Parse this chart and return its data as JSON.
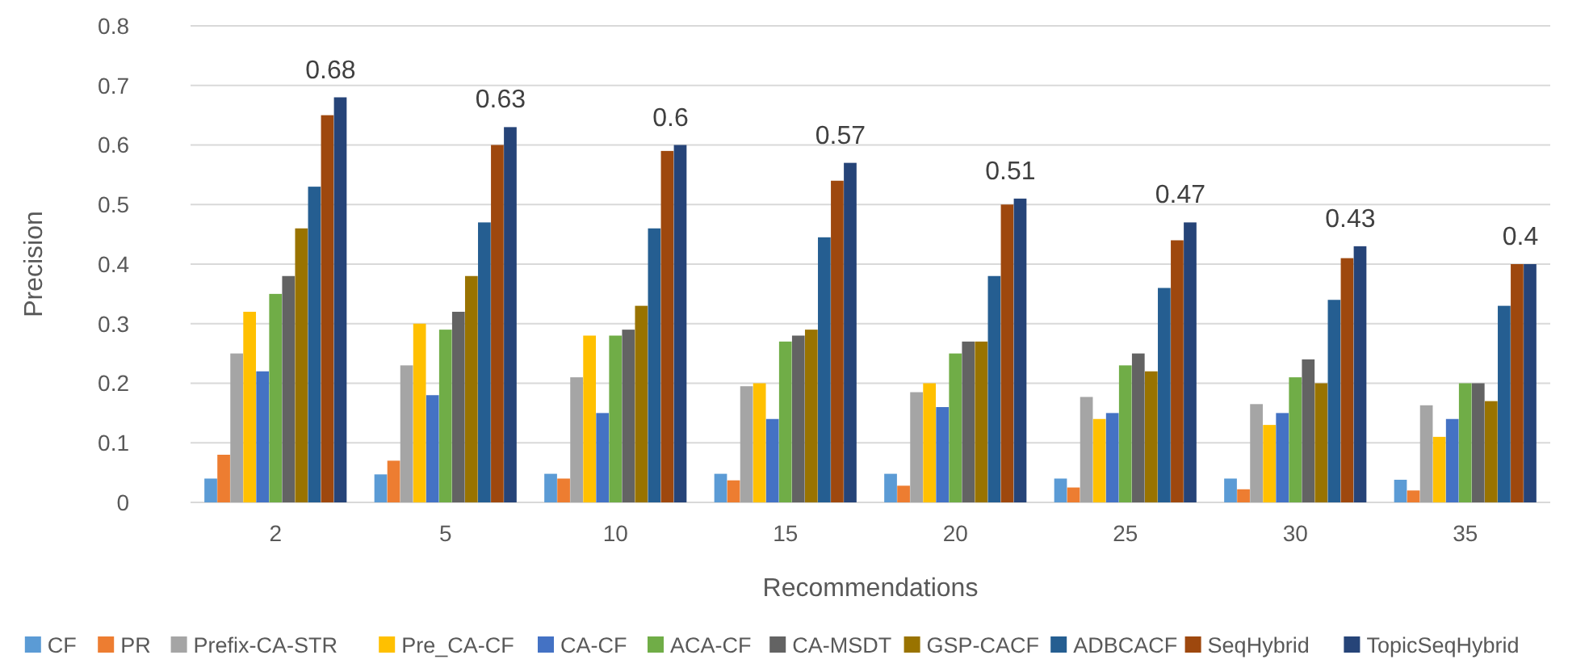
{
  "chart_data": {
    "type": "bar",
    "xlabel": "Recommendations",
    "ylabel": "Precision",
    "categories": [
      "2",
      "5",
      "10",
      "15",
      "20",
      "25",
      "30",
      "35"
    ],
    "ylim": [
      0,
      0.8
    ],
    "yticks": [
      0,
      0.1,
      0.2,
      0.3,
      0.4,
      0.5,
      0.6,
      0.7,
      0.8
    ],
    "grid": "y",
    "legend": "bottom",
    "series": [
      {
        "name": "CF",
        "color": "#5b9bd5",
        "values": [
          0.04,
          0.047,
          0.048,
          0.048,
          0.048,
          0.04,
          0.04,
          0.038
        ]
      },
      {
        "name": "PR",
        "color": "#ed7d31",
        "values": [
          0.08,
          0.07,
          0.04,
          0.037,
          0.028,
          0.025,
          0.022,
          0.02
        ]
      },
      {
        "name": "Prefix-CA-STR",
        "color": "#a5a5a5",
        "values": [
          0.25,
          0.23,
          0.21,
          0.195,
          0.185,
          0.177,
          0.165,
          0.163
        ]
      },
      {
        "name": "Pre_CA-CF",
        "color": "#ffc000",
        "values": [
          0.32,
          0.3,
          0.28,
          0.2,
          0.2,
          0.14,
          0.13,
          0.11
        ]
      },
      {
        "name": "CA-CF",
        "color": "#4472c4",
        "values": [
          0.22,
          0.18,
          0.15,
          0.14,
          0.16,
          0.15,
          0.15,
          0.14
        ]
      },
      {
        "name": "ACA-CF",
        "color": "#70ad47",
        "values": [
          0.35,
          0.29,
          0.28,
          0.27,
          0.25,
          0.23,
          0.21,
          0.2
        ]
      },
      {
        "name": "CA-MSDT",
        "color": "#636363",
        "values": [
          0.38,
          0.32,
          0.29,
          0.28,
          0.27,
          0.25,
          0.24,
          0.2
        ]
      },
      {
        "name": "GSP-CACF",
        "color": "#997300",
        "values": [
          0.46,
          0.38,
          0.33,
          0.29,
          0.27,
          0.22,
          0.2,
          0.17
        ]
      },
      {
        "name": "ADBCACF",
        "color": "#255e91",
        "values": [
          0.53,
          0.47,
          0.46,
          0.445,
          0.38,
          0.36,
          0.34,
          0.33
        ]
      },
      {
        "name": "SeqHybrid",
        "color": "#9e480e",
        "values": [
          0.65,
          0.6,
          0.59,
          0.54,
          0.5,
          0.44,
          0.41,
          0.4
        ]
      },
      {
        "name": "TopicSeqHybrid",
        "color": "#264478",
        "values": [
          0.68,
          0.63,
          0.6,
          0.57,
          0.51,
          0.47,
          0.43,
          0.4
        ],
        "value_labels": [
          "0.68",
          "0.63",
          "0.6",
          "0.57",
          "0.51",
          "0.47",
          "0.43",
          "0.4"
        ]
      }
    ]
  }
}
